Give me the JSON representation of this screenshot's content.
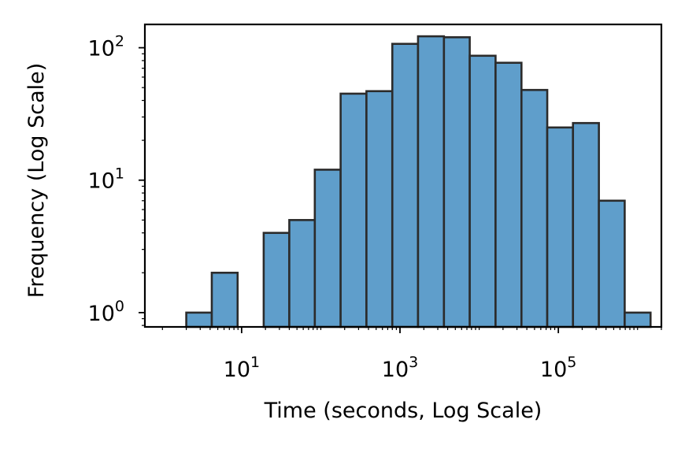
{
  "chart_data": {
    "type": "bar",
    "xlabel": "Time (seconds, Log Scale)",
    "ylabel": "Frequency (Log Scale)",
    "x_scale": "log",
    "y_scale": "log",
    "xlim": [
      0.6,
      2000000
    ],
    "ylim": [
      0.78,
      150
    ],
    "grid": false,
    "x_ticks": [
      {
        "base": "10",
        "exp": "1",
        "value": 10
      },
      {
        "base": "10",
        "exp": "3",
        "value": 1000
      },
      {
        "base": "10",
        "exp": "5",
        "value": 100000
      }
    ],
    "y_ticks": [
      {
        "base": "10",
        "exp": "0",
        "value": 1
      },
      {
        "base": "10",
        "exp": "1",
        "value": 10
      },
      {
        "base": "10",
        "exp": "2",
        "value": 100
      }
    ],
    "bins": [
      {
        "x0": 2.0,
        "x1": 4.2,
        "value": 1
      },
      {
        "x0": 4.2,
        "x1": 8.9,
        "value": 2
      },
      {
        "x0": 8.9,
        "x1": 19,
        "value": 0
      },
      {
        "x0": 19,
        "x1": 40,
        "value": 4
      },
      {
        "x0": 40,
        "x1": 84,
        "value": 5
      },
      {
        "x0": 84,
        "x1": 178,
        "value": 12
      },
      {
        "x0": 178,
        "x1": 377,
        "value": 45
      },
      {
        "x0": 377,
        "x1": 800,
        "value": 47
      },
      {
        "x0": 800,
        "x1": 1690,
        "value": 107
      },
      {
        "x0": 1690,
        "x1": 3590,
        "value": 122
      },
      {
        "x0": 3590,
        "x1": 7600,
        "value": 120
      },
      {
        "x0": 7600,
        "x1": 16100,
        "value": 87
      },
      {
        "x0": 16100,
        "x1": 34200,
        "value": 77
      },
      {
        "x0": 34200,
        "x1": 72400,
        "value": 48
      },
      {
        "x0": 72400,
        "x1": 153000,
        "value": 25
      },
      {
        "x0": 153000,
        "x1": 325000,
        "value": 27
      },
      {
        "x0": 325000,
        "x1": 688000,
        "value": 7
      },
      {
        "x0": 688000,
        "x1": 1460000,
        "value": 1
      }
    ],
    "colors": {
      "bar_fill": "#5f9ecb",
      "bar_edge": "#2b2b2b",
      "axis": "#000000"
    }
  }
}
